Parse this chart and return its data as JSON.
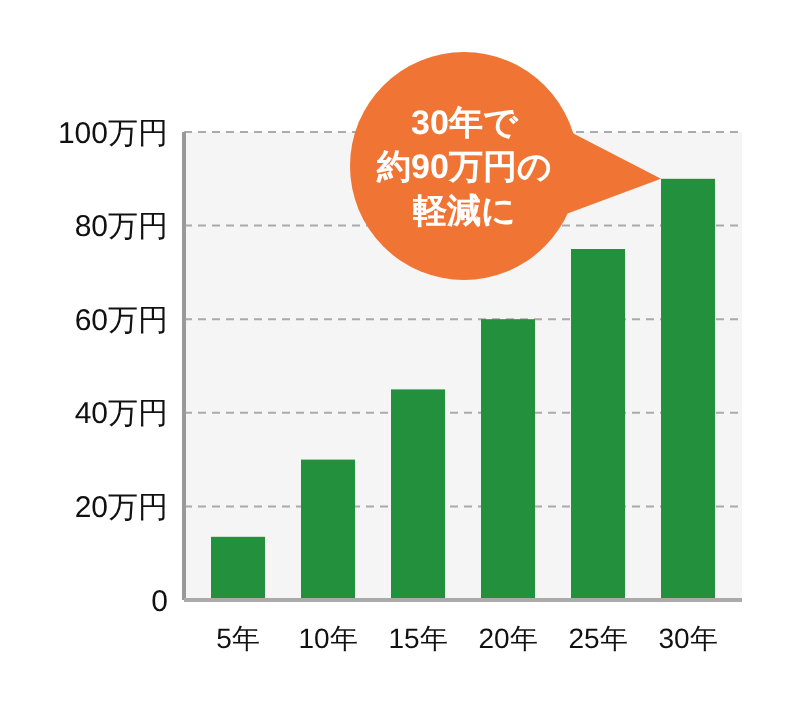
{
  "chart_data": {
    "type": "bar",
    "categories": [
      "5年",
      "10年",
      "15年",
      "20年",
      "25年",
      "30年"
    ],
    "values": [
      13.5,
      30,
      45,
      60,
      75,
      90
    ],
    "color": "#22903c",
    "ylim": [
      0,
      100
    ],
    "yticks": [
      {
        "value": 0,
        "label": "0"
      },
      {
        "value": 20,
        "label": "20万円"
      },
      {
        "value": 40,
        "label": "40万円"
      },
      {
        "value": 60,
        "label": "60万円"
      },
      {
        "value": 80,
        "label": "80万円"
      },
      {
        "value": 100,
        "label": "100万円"
      }
    ],
    "grid": "y",
    "line_style": "dashed",
    "annotations": [
      "30年で約90万円の軽減に"
    ]
  }
}
